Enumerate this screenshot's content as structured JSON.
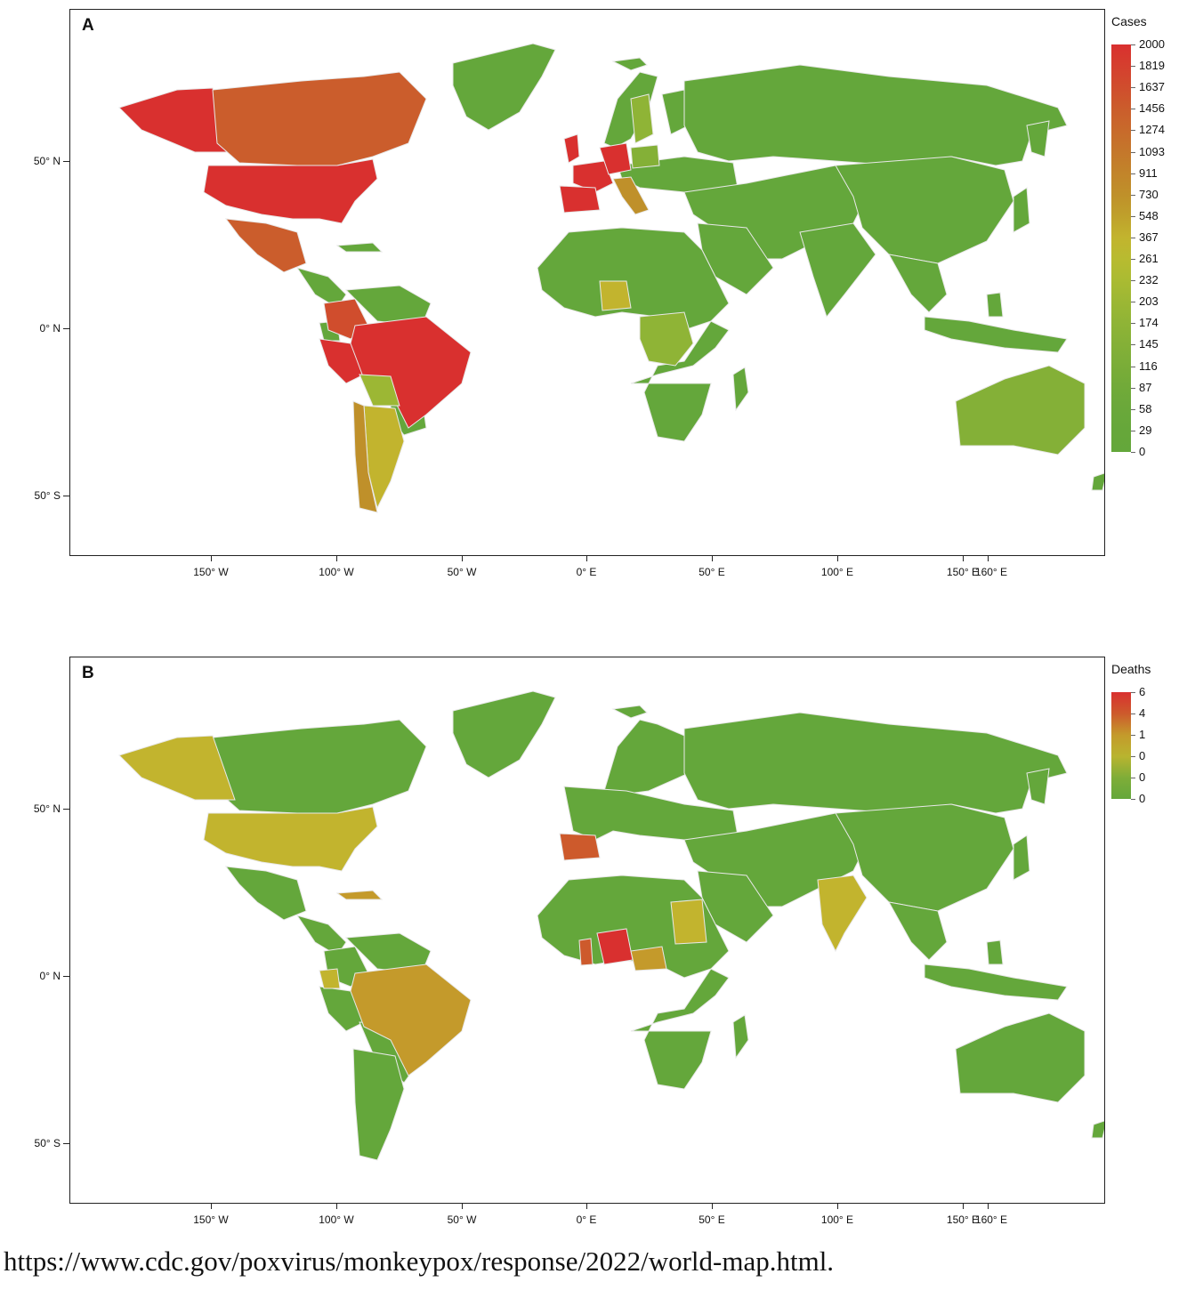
{
  "panels": [
    {
      "letter": "A",
      "legend": {
        "title": "Cases",
        "labels": [
          "2000",
          "1819",
          "1637",
          "1456",
          "1274",
          "1093",
          "911",
          "730",
          "548",
          "367",
          "261",
          "232",
          "203",
          "174",
          "145",
          "116",
          "87",
          "58",
          "29",
          "0"
        ],
        "colors": [
          "#d9302f",
          "#d53f2e",
          "#d04d2d",
          "#cb5d2c",
          "#c86a2b",
          "#c4772b",
          "#c2842a",
          "#bf902a",
          "#bfa02b",
          "#c2b42e",
          "#b8bb30",
          "#aabb32",
          "#9cb734",
          "#8fb436",
          "#84b037",
          "#7aad38",
          "#71aa39",
          "#6aa83a",
          "#66a73a",
          "#64a73b"
        ]
      },
      "choropleth": [
        {
          "region": "United States",
          "value": 2000
        },
        {
          "region": "Alaska",
          "value": 2000
        },
        {
          "region": "Canada",
          "value": 1456
        },
        {
          "region": "Mexico",
          "value": 1456
        },
        {
          "region": "Colombia",
          "value": 1637
        },
        {
          "region": "Peru",
          "value": 2000
        },
        {
          "region": "Brazil",
          "value": 2000
        },
        {
          "region": "Bolivia",
          "value": 203
        },
        {
          "region": "Argentina",
          "value": 261
        },
        {
          "region": "Chile",
          "value": 730
        },
        {
          "region": "United Kingdom",
          "value": 2000
        },
        {
          "region": "France",
          "value": 2000
        },
        {
          "region": "Spain",
          "value": 2000
        },
        {
          "region": "Germany",
          "value": 2000
        },
        {
          "region": "Italy",
          "value": 911
        },
        {
          "region": "Nigeria",
          "value": 261
        },
        {
          "region": "DR Congo",
          "value": 174
        },
        {
          "region": "Australia",
          "value": 145
        },
        {
          "region": "Sweden",
          "value": 174
        },
        {
          "region": "Poland",
          "value": 145
        }
      ]
    },
    {
      "letter": "B",
      "legend": {
        "title": "Deaths",
        "labels": [
          "6",
          "4",
          "1",
          "0",
          "0",
          "0"
        ],
        "colors": [
          "#d9302f",
          "#cd5a2c",
          "#c49a2b",
          "#b9b42f",
          "#7fad38",
          "#64a73b"
        ]
      },
      "choropleth": [
        {
          "region": "United States",
          "value": 1
        },
        {
          "region": "Alaska",
          "value": 1
        },
        {
          "region": "Brazil",
          "value": 1
        },
        {
          "region": "Spain",
          "value": 4
        },
        {
          "region": "Nigeria",
          "value": 6
        },
        {
          "region": "Ghana",
          "value": 4
        },
        {
          "region": "Central African Republic",
          "value": 1
        },
        {
          "region": "Sudan",
          "value": 1
        },
        {
          "region": "India",
          "value": 1
        },
        {
          "region": "Ecuador",
          "value": 1
        }
      ]
    }
  ],
  "axes": {
    "y_labels": [
      "50° N",
      "0° N",
      "50° S"
    ],
    "x_labels": [
      "150° W",
      "100° W",
      "50° W",
      "0° E",
      "50° E",
      "100° E",
      "150° E",
      "160° E"
    ]
  },
  "colors": {
    "base_land": "#64a73b",
    "border": "#e8e8e8",
    "frame": "#222222"
  },
  "source": "https://www.cdc.gov/poxvirus/monkeypox/response/2022/world-map.html."
}
